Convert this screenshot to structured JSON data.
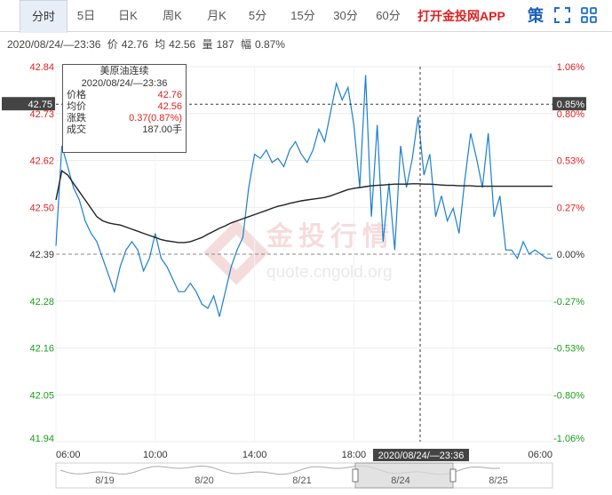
{
  "tabs": [
    {
      "label": "分时",
      "active": true
    },
    {
      "label": "5日"
    },
    {
      "label": "日K"
    },
    {
      "label": "周K"
    },
    {
      "label": "月K"
    },
    {
      "label": "5分"
    },
    {
      "label": "15分"
    },
    {
      "label": "30分"
    },
    {
      "label": "60分"
    }
  ],
  "promo": "打开金投网APP",
  "tools": {
    "strategy": "策"
  },
  "info": {
    "datetime": "2020/08/24/—23:36",
    "price_label": "价",
    "price": "42.76",
    "avg_label": "均",
    "avg": "42.56",
    "vol_label": "量",
    "vol": "187",
    "chg_label": "幅",
    "chg": "0.87%"
  },
  "tooltip": {
    "title": "美原油连续",
    "datetime": "2020/08/24/—23:36",
    "rows": [
      {
        "k": "价格",
        "v": "42.76"
      },
      {
        "k": "均价",
        "v": "42.56"
      },
      {
        "k": "涨跌",
        "v": "0.37(0.87%)"
      },
      {
        "k": "成交",
        "v": "187.00手"
      }
    ]
  },
  "watermark": {
    "brand": "金投行情",
    "url": "quote.cngold.org"
  },
  "colors": {
    "price": "#1a7fd0",
    "avg": "#222222",
    "up": "#e02020",
    "down": "#1a9e1a",
    "neutral": "#333333"
  },
  "chart_data": {
    "type": "line",
    "title": "美原油连续",
    "prev_close": 42.39,
    "ylim": [
      41.94,
      42.84
    ],
    "y_ticks_left": [
      "42.84",
      "42.73",
      "42.62",
      "42.50",
      "42.39",
      "42.28",
      "42.16",
      "42.05",
      "41.94"
    ],
    "y_ticks_right": [
      "1.06%",
      "0.80%",
      "0.53%",
      "0.27%",
      "0.00%",
      "-0.27%",
      "-0.53%",
      "-0.80%",
      "-1.06%"
    ],
    "x_ticks": [
      "06:00",
      "10:00",
      "14:00",
      "18:00",
      "",
      "06:00"
    ],
    "cursor": {
      "time": "2020/08/24/—23:36",
      "price_label": "42.75",
      "pct_label": "0.85%",
      "price": 42.75
    },
    "series": [
      {
        "name": "价格",
        "values": [
          42.41,
          42.65,
          42.6,
          42.55,
          42.52,
          42.47,
          42.44,
          42.42,
          42.38,
          42.34,
          42.3,
          42.36,
          42.4,
          42.42,
          42.4,
          42.35,
          42.38,
          42.44,
          42.38,
          42.36,
          42.33,
          42.3,
          42.3,
          42.32,
          42.3,
          42.27,
          42.26,
          42.29,
          42.24,
          42.3,
          42.36,
          42.4,
          42.43,
          42.55,
          42.63,
          42.62,
          42.64,
          42.61,
          42.62,
          42.6,
          42.64,
          42.66,
          42.63,
          42.61,
          42.64,
          42.69,
          42.66,
          42.73,
          42.8,
          42.76,
          42.79,
          42.7,
          42.55,
          42.82,
          42.48,
          42.7,
          42.42,
          42.56,
          42.4,
          42.65,
          42.55,
          42.62,
          42.72,
          42.58,
          42.63,
          42.48,
          42.53,
          42.47,
          42.5,
          42.44,
          42.57,
          42.68,
          42.62,
          42.55,
          42.68,
          42.48,
          42.53,
          42.4,
          42.4,
          42.38,
          42.42,
          42.39,
          42.4,
          42.39,
          42.38,
          42.38
        ]
      },
      {
        "name": "均价",
        "values": [
          42.52,
          42.59,
          42.58,
          42.56,
          42.54,
          42.52,
          42.5,
          42.48,
          42.47,
          42.465,
          42.462,
          42.46,
          42.455,
          42.45,
          42.445,
          42.44,
          42.435,
          42.43,
          42.425,
          42.422,
          42.42,
          42.418,
          42.418,
          42.42,
          42.425,
          42.43,
          42.438,
          42.445,
          42.452,
          42.458,
          42.465,
          42.47,
          42.475,
          42.48,
          42.485,
          42.49,
          42.495,
          42.5,
          42.505,
          42.508,
          42.512,
          42.515,
          42.518,
          42.52,
          42.522,
          42.524,
          42.526,
          42.53,
          42.535,
          42.54,
          42.545,
          42.548,
          42.55,
          42.552,
          42.554,
          42.555,
          42.556,
          42.557,
          42.558,
          42.558,
          42.558,
          42.559,
          42.559,
          42.558,
          42.558,
          42.557,
          42.556,
          42.555,
          42.555,
          42.554,
          42.554,
          42.554,
          42.553,
          42.553,
          42.553,
          42.553,
          42.553,
          42.553,
          42.553,
          42.553,
          42.553,
          42.553,
          42.553,
          42.553,
          42.553,
          42.553
        ]
      }
    ],
    "navigator": {
      "labels": [
        "8/19",
        "8/20",
        "8/21",
        "8/24",
        "8/25"
      ],
      "cursor_label": "2020/08/24/—23:36"
    }
  }
}
